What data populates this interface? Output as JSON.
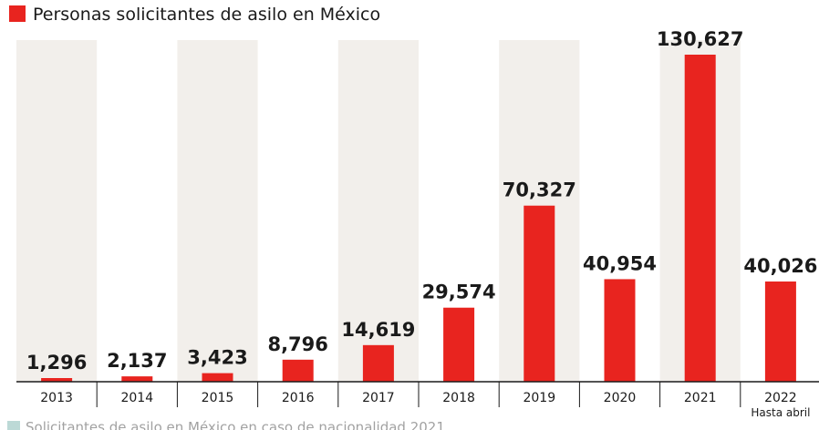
{
  "chart_data": {
    "type": "bar",
    "title": "Personas solicitantes de asilo en México",
    "categories": [
      "2013",
      "2014",
      "2015",
      "2016",
      "2017",
      "2018",
      "2019",
      "2020",
      "2021",
      "2022"
    ],
    "category_sublabels": [
      "",
      "",
      "",
      "",
      "",
      "",
      "",
      "",
      "",
      "Hasta abril"
    ],
    "values": [
      1296,
      2137,
      3423,
      8796,
      14619,
      29574,
      70327,
      40954,
      130627,
      40026
    ],
    "value_labels": [
      "1,296",
      "2,137",
      "3,423",
      "8,796",
      "14,619",
      "29,574",
      "70,327",
      "40,954",
      "130,627",
      "40,026"
    ],
    "ylim": [
      0,
      130627
    ],
    "xlabel": "",
    "ylabel": "",
    "legend": "top-left",
    "grid": false,
    "colors": {
      "bar": "#e8241f",
      "band": "#f2efeb",
      "axis": "#1a1a1a",
      "footer_marker": "#9fc9c4"
    }
  },
  "footer": {
    "text": "Solicitantes de asilo en México en caso de nacionalidad 2021"
  }
}
